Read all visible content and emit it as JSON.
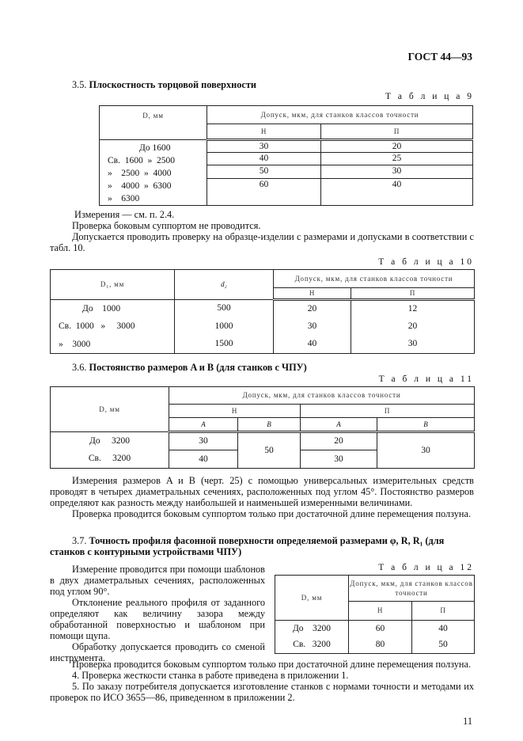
{
  "header": {
    "doc_code": "ГОСТ 44—93"
  },
  "s35": {
    "num": "3.5.",
    "title": "Плоскостность торцовой поверхности"
  },
  "t9": {
    "caption": "Т а б л и ц а   9",
    "col_d": "D, мм",
    "col_group": "Допуск, мкм, для станков классов точности",
    "col_h": "Н",
    "col_p": "П",
    "d_values": [
      "До 1600",
      "Св.  1600  »  2500",
      "»    2500  »  4000",
      "»    4000  »  6300",
      "»    6300"
    ],
    "h_values": [
      "30",
      "40",
      "50",
      "60"
    ],
    "p_values": [
      "20",
      "25",
      "30",
      "40"
    ]
  },
  "after9": [
    "Измерения — см. п. 2.4.",
    "Проверка боковым суппортом не проводится.",
    "Допускается проводить проверку на образце-изделии с размерами и допусками в соответствии с табл. 10."
  ],
  "t10": {
    "caption": "Т а б л и ц а   10",
    "col_d": "D₁, мм",
    "col_d2": "d₂",
    "col_group": "Допуск, мкм, для станков классов точности",
    "col_h": "Н",
    "col_p": "П",
    "rows": [
      {
        "d": "До    1000",
        "d2": "500",
        "h": "20",
        "p": "12"
      },
      {
        "d": "Св.  1000   »     3000",
        "d2": "1000",
        "h": "30",
        "p": "20"
      },
      {
        "d": "»    3000",
        "d2": "1500",
        "h": "40",
        "p": "30"
      }
    ]
  },
  "s36": {
    "num": "3.6.",
    "title": "Постоянство размеров A и B (для станков с ЧПУ)"
  },
  "t11": {
    "caption": "Т а б л и ц а   11",
    "col_d": "D, мм",
    "col_group": "Допуск, мкм, для станков классов точности",
    "col_h": "Н",
    "col_p": "П",
    "col_a": "A",
    "col_b": "B",
    "rows": [
      {
        "d": "До     3200",
        "ha": "30",
        "pa": "20"
      },
      {
        "d": "Св.     3200",
        "ha": "40",
        "pa": "30"
      }
    ],
    "hb": "50",
    "pb": "30"
  },
  "after11": [
    "Измерения размеров A и B  (черт. 25) с помощью универсальных измерительных средств проводят в четырех диаметральных сечениях, расположенных под углом 45°. Постоянство размеров определяют как разность между наибольшей и наименьшей измеренными величинами.",
    "Проверка проводится боковым суппортом только при достаточной длине перемещения ползуна."
  ],
  "s37": {
    "num": "3.7.",
    "title": "Точность профиля фасонной поверхности определяемой размерами φ, R, R₁ (для станков с контурными устройствами ЧПУ)"
  },
  "t12": {
    "caption": "Т а б л и ц а   12",
    "col_d": "D, мм",
    "col_group": "Допуск, мкм, для станков классов точности",
    "col_h": "Н",
    "col_p": "П",
    "rows": [
      {
        "d": "До    3200",
        "h": "60",
        "p": "40"
      },
      {
        "d": "Св.   3200",
        "h": "80",
        "p": "50"
      }
    ]
  },
  "s37_text": [
    "Измерение проводится при помощи шаблонов в двух диаметральных сечениях, расположенных под углом 90°.",
    "Отклонение реального профиля от заданного определяют как величину зазора между обработанной поверхностью и шаблоном при помощи щупа.",
    "Обработку допускается проводить со сменой инструмента."
  ],
  "final": [
    "Проверка проводится боковым суппортом только при достаточной длине перемещения ползуна.",
    "4. Проверка жесткости станка в работе приведена в приложении 1.",
    "5. По заказу потребителя допускается изготовление станков с нормами точности и методами их проверок по ИСО 3655—86, приведенном в приложении 2."
  ],
  "page_number": "11"
}
